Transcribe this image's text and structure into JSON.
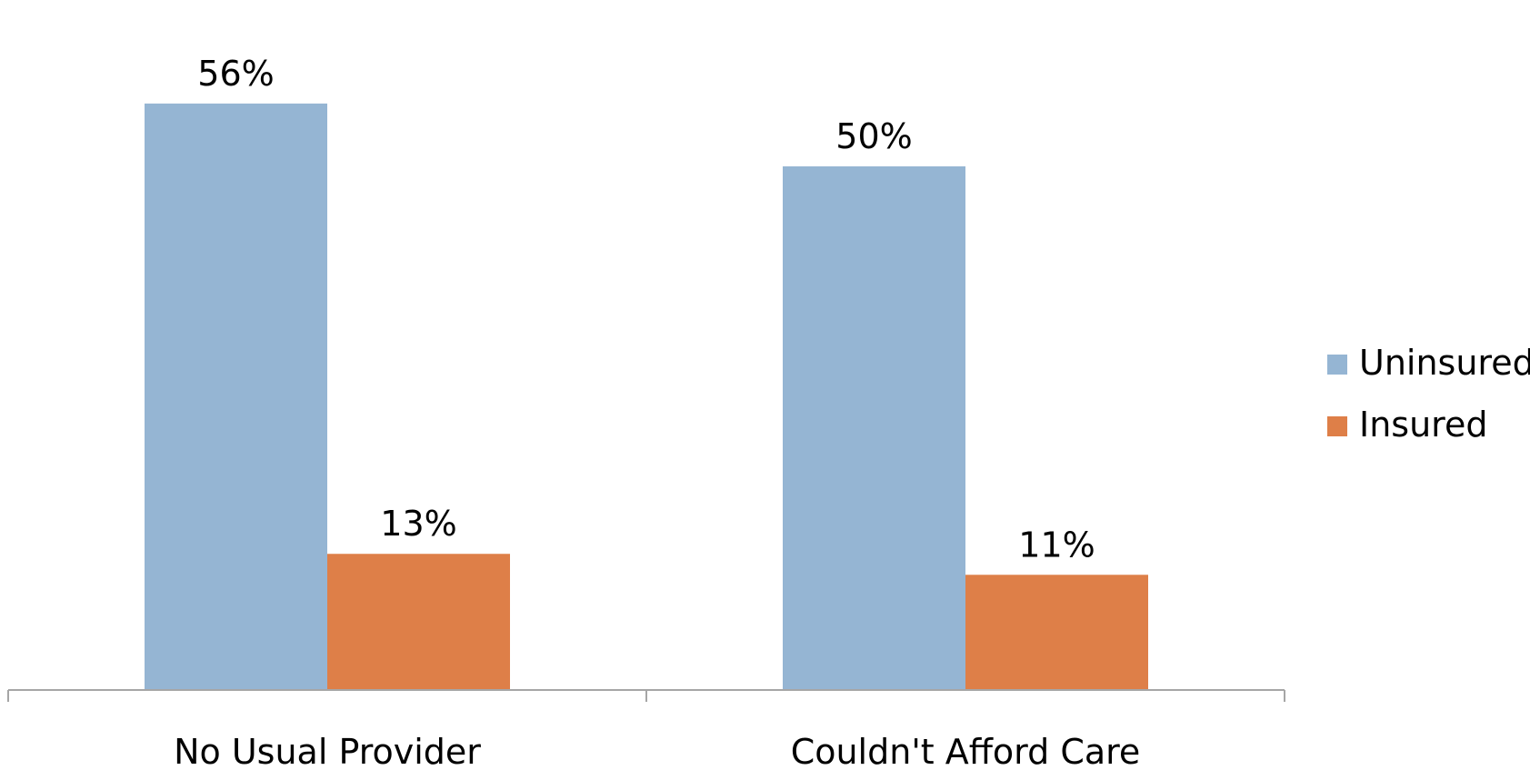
{
  "chart_data": {
    "type": "bar",
    "categories": [
      "No Usual Provider",
      "Couldn't Afford Care"
    ],
    "series": [
      {
        "name": "Uninsured",
        "values": [
          56,
          50
        ],
        "labels": [
          "56%",
          "50%"
        ],
        "color": "#95b5d3"
      },
      {
        "name": "Insured",
        "values": [
          13,
          11
        ],
        "labels": [
          "13%",
          "11%"
        ],
        "color": "#de7f48"
      }
    ],
    "ylim": [
      0,
      60
    ],
    "value_suffix": "%",
    "legend_position": "right",
    "grid": false
  }
}
